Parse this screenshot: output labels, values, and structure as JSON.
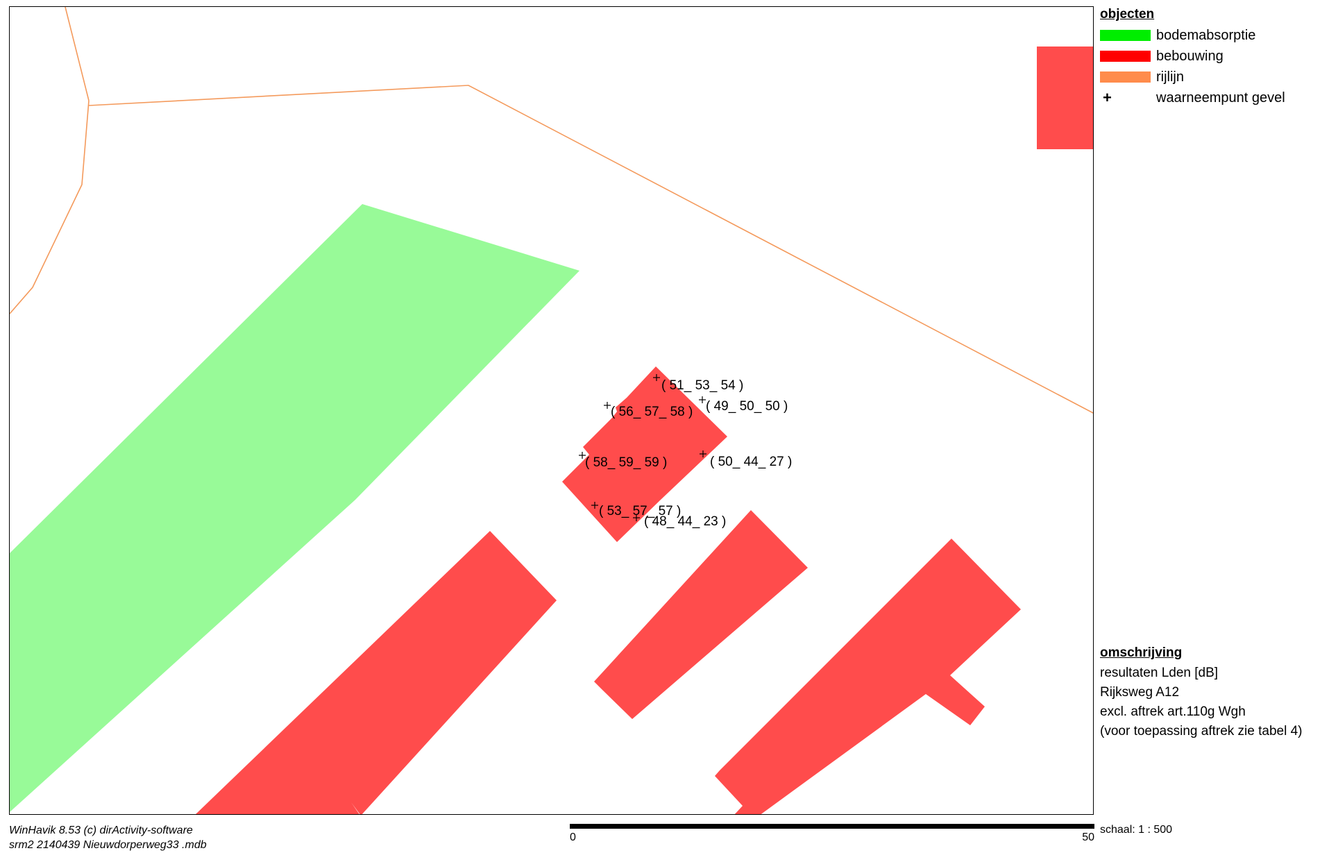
{
  "colors": {
    "bodemabsorptie": "#98fa98",
    "bebouwing": "#ff4c4c",
    "rijlijn": "#f49a5c",
    "legend_green": "#00ee00",
    "legend_red": "#ff0000",
    "legend_orange": "#ff8c4c"
  },
  "legend": {
    "title": "objecten",
    "items": [
      {
        "label": "bodemabsorptie",
        "symbol": "green-swatch"
      },
      {
        "label": "bebouwing",
        "symbol": "red-swatch"
      },
      {
        "label": "rijlijn",
        "symbol": "orange-swatch"
      },
      {
        "label": "waarneempunt gevel",
        "symbol": "plus-icon",
        "glyph": "+"
      }
    ]
  },
  "description": {
    "title": "omschrijving",
    "lines": [
      "resultaten Lden [dB]",
      "Rijksweg A12",
      "excl. aftrek art.110g Wgh",
      "(voor toepassing aftrek zie tabel 4)"
    ]
  },
  "footer": {
    "software": "WinHavik 8.53 (c) dirActivity-software",
    "file": "srm2 2140439 Nieuwdorperweg33 .mdb"
  },
  "scale": {
    "start_label": "0",
    "end_label": "50",
    "ratio_label": "schaal:  1 : 500"
  },
  "points": [
    {
      "label": "( 51_ 53_ 54 )"
    },
    {
      "label": "( 56_ 57_ 58 )"
    },
    {
      "label": "( 49_ 50_ 50 )"
    },
    {
      "label": "( 58_ 59_ 59 )"
    },
    {
      "label": "( 50_ 44_ 27 )"
    },
    {
      "label": "( 53_ 57_ 57 )"
    },
    {
      "label": "( 48_ 44_ 23 )"
    }
  ]
}
